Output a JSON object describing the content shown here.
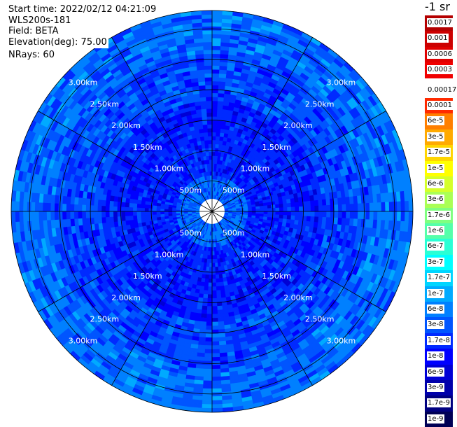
{
  "header": {
    "start_time": "Start time: 2022/02/12 04:21:09",
    "device": "WLS200s-181",
    "field": "Field: BETA",
    "elevation": "Elevation(deg): 75.00",
    "nrays": "NRays: 60"
  },
  "colorbar": {
    "title": "-1 sr",
    "labels": [
      "0.0017",
      "0.001",
      "0.0006",
      "0.0003",
      "0.00017",
      "0.0001",
      "6e-5",
      "3e-5",
      "1.7e-5",
      "1e-5",
      "6e-6",
      "3e-6",
      "1.7e-6",
      "1e-6",
      "6e-7",
      "3e-7",
      "1.7e-7",
      "1e-7",
      "6e-8",
      "3e-8",
      "1.7e-8",
      "1e-8",
      "6e-9",
      "3e-9",
      "1.7e-9",
      "1e-9"
    ],
    "colors": [
      "#b40000",
      "#cc0000",
      "#e00000",
      "#f00000",
      "#ffffff",
      "#ff2a00",
      "#ff7f00",
      "#ffaa00",
      "#ffd500",
      "#ffff00",
      "#d5ff2a",
      "#aaff55",
      "#80ff80",
      "#55ffaa",
      "#2affd5",
      "#00ffff",
      "#00d5ff",
      "#00aaff",
      "#0080ff",
      "#0055ff",
      "#002aff",
      "#0000ff",
      "#0000d5",
      "#0000aa",
      "#000080",
      "#000055"
    ]
  },
  "chart_data": {
    "type": "heatmap",
    "projection": "polar",
    "field": "BETA",
    "elevation_deg": 75.0,
    "n_rays": 60,
    "range_rings": [
      "500m",
      "1.00km",
      "1.50km",
      "2.00km",
      "2.50km",
      "3.00km"
    ],
    "spokes_deg": [
      0,
      30,
      60,
      90,
      120,
      150,
      180,
      210,
      240,
      270,
      300,
      330
    ],
    "value_range": [
      "1e-9",
      "0.0017"
    ],
    "dominant_values": [
      "1e-8",
      "3e-8",
      "6e-8",
      "1.7e-8"
    ]
  }
}
